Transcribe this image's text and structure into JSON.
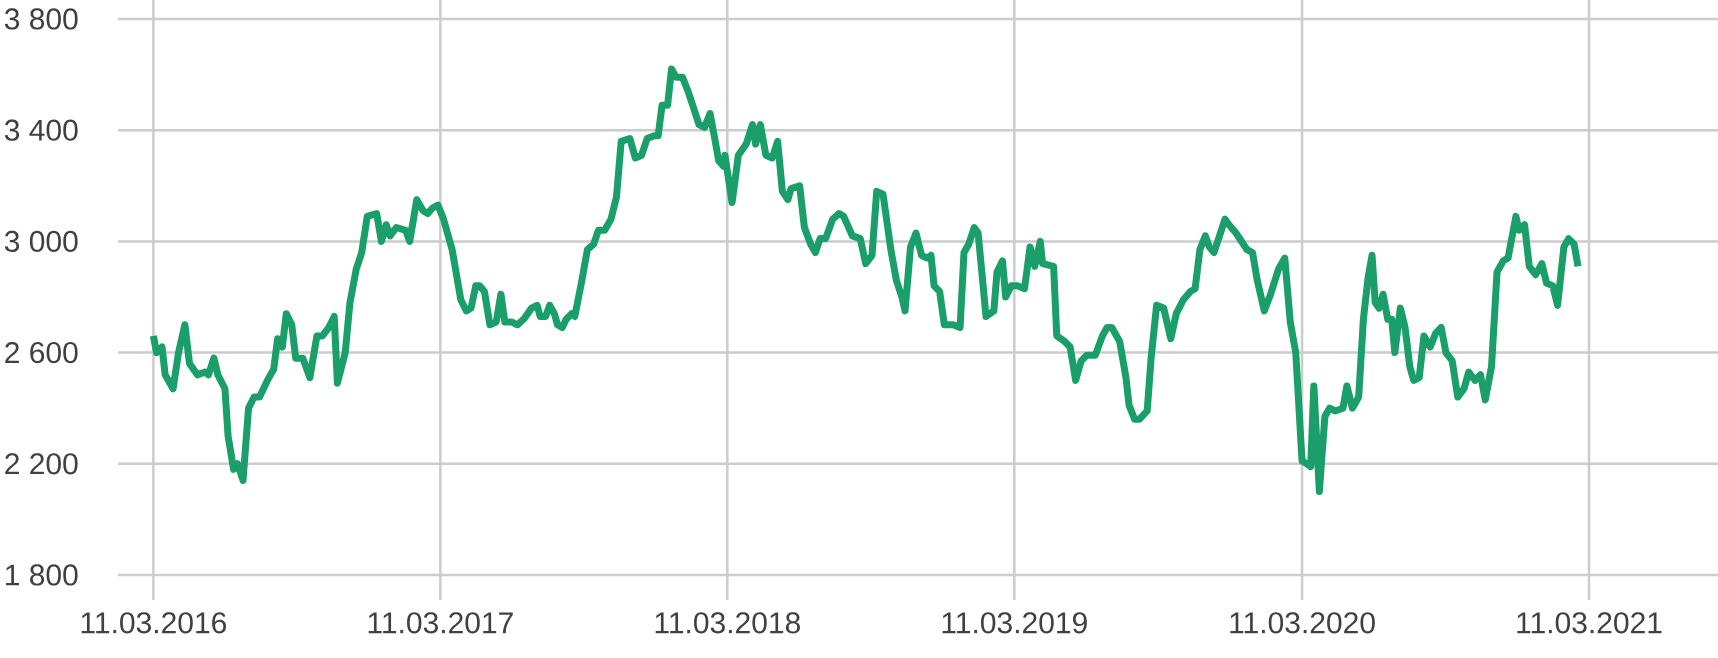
{
  "chart_data": {
    "type": "line",
    "color": "#1a9e6a",
    "grid": true,
    "xlim": [
      "2016-01-26",
      "2021-08-22"
    ],
    "xticks": [
      {
        "value": "2016-03-11",
        "label": "11.03.2016"
      },
      {
        "value": "2017-03-11",
        "label": "11.03.2017"
      },
      {
        "value": "2018-03-11",
        "label": "11.03.2018"
      },
      {
        "value": "2019-03-11",
        "label": "11.03.2019"
      },
      {
        "value": "2020-03-11",
        "label": "11.03.2020"
      },
      {
        "value": "2021-03-11",
        "label": "11.03.2021"
      }
    ],
    "ylim": [
      1800,
      3800
    ],
    "yticks": [
      {
        "value": 1800,
        "label": "1 800"
      },
      {
        "value": 2200,
        "label": "2 200"
      },
      {
        "value": 2600,
        "label": "2 600"
      },
      {
        "value": 3000,
        "label": "3 000"
      },
      {
        "value": 3400,
        "label": "3 400"
      },
      {
        "value": 3800,
        "label": "3 800"
      }
    ],
    "x": [
      "2016-03-11",
      "2016-03-15",
      "2016-03-22",
      "2016-03-26",
      "2016-04-05",
      "2016-04-12",
      "2016-04-20",
      "2016-04-26",
      "2016-05-06",
      "2016-05-16",
      "2016-05-20",
      "2016-05-27",
      "2016-06-01",
      "2016-06-10",
      "2016-06-14",
      "2016-06-21",
      "2016-06-26",
      "2016-07-03",
      "2016-07-10",
      "2016-07-17",
      "2016-07-24",
      "2016-08-03",
      "2016-08-11",
      "2016-08-16",
      "2016-08-22",
      "2016-08-27",
      "2016-09-03",
      "2016-09-08",
      "2016-09-17",
      "2016-09-26",
      "2016-10-05",
      "2016-10-12",
      "2016-10-20",
      "2016-10-27",
      "2016-10-31",
      "2016-11-10",
      "2016-11-16",
      "2016-11-24",
      "2016-12-01",
      "2016-12-08",
      "2016-12-20",
      "2016-12-26",
      "2017-01-01",
      "2017-01-06",
      "2017-01-14",
      "2017-01-26",
      "2017-01-31",
      "2017-02-09",
      "2017-02-17",
      "2017-02-23",
      "2017-03-01",
      "2017-03-08",
      "2017-03-15",
      "2017-03-26",
      "2017-04-06",
      "2017-04-13",
      "2017-04-19",
      "2017-04-25",
      "2017-04-30",
      "2017-05-06",
      "2017-05-13",
      "2017-05-21",
      "2017-05-27",
      "2017-06-01",
      "2017-06-10",
      "2017-06-17",
      "2017-06-25",
      "2017-07-05",
      "2017-07-12",
      "2017-07-16",
      "2017-07-23",
      "2017-07-28",
      "2017-08-03",
      "2017-08-07",
      "2017-08-13",
      "2017-08-18",
      "2017-08-25",
      "2017-08-29",
      "2017-09-07",
      "2017-09-14",
      "2017-09-22",
      "2017-09-28",
      "2017-10-06",
      "2017-10-14",
      "2017-10-21",
      "2017-10-27",
      "2017-11-07",
      "2017-11-14",
      "2017-11-22",
      "2017-11-29",
      "2017-12-08",
      "2017-12-13",
      "2017-12-18",
      "2017-12-25",
      "2017-12-30",
      "2018-01-05",
      "2018-01-13",
      "2018-01-20",
      "2018-01-27",
      "2018-02-03",
      "2018-02-10",
      "2018-02-17",
      "2018-02-23",
      "2018-02-28",
      "2018-03-06",
      "2018-03-08",
      "2018-03-17",
      "2018-03-25",
      "2018-04-04",
      "2018-04-12",
      "2018-04-16",
      "2018-04-22",
      "2018-04-29",
      "2018-05-07",
      "2018-05-14",
      "2018-05-20",
      "2018-05-27",
      "2018-05-31",
      "2018-06-11",
      "2018-06-17",
      "2018-06-25",
      "2018-07-01",
      "2018-07-07",
      "2018-07-14",
      "2018-07-23",
      "2018-07-31",
      "2018-08-06",
      "2018-08-17",
      "2018-08-27",
      "2018-09-03",
      "2018-09-11",
      "2018-09-17",
      "2018-09-25",
      "2018-10-05",
      "2018-10-12",
      "2018-10-19",
      "2018-10-23",
      "2018-10-30",
      "2018-11-06",
      "2018-11-13",
      "2018-11-20",
      "2018-11-25",
      "2018-11-29",
      "2018-12-06",
      "2018-12-12",
      "2018-12-23",
      "2019-01-01",
      "2019-01-06",
      "2019-01-12",
      "2019-01-19",
      "2019-01-24",
      "2019-02-03",
      "2019-02-13",
      "2019-02-17",
      "2019-02-24",
      "2019-02-28",
      "2019-03-07",
      "2019-03-15",
      "2019-03-24",
      "2019-03-31",
      "2019-04-06",
      "2019-04-13",
      "2019-04-16",
      "2019-04-30",
      "2019-05-04",
      "2019-05-14",
      "2019-05-21",
      "2019-05-28",
      "2019-06-04",
      "2019-06-11",
      "2019-06-22",
      "2019-07-01",
      "2019-07-07",
      "2019-07-13",
      "2019-07-23",
      "2019-07-31",
      "2019-08-04",
      "2019-08-11",
      "2019-08-17",
      "2019-08-27",
      "2019-09-01",
      "2019-09-08",
      "2019-09-17",
      "2019-09-26",
      "2019-10-03",
      "2019-10-12",
      "2019-10-21",
      "2019-10-27",
      "2019-11-02",
      "2019-11-09",
      "2019-11-14",
      "2019-11-20",
      "2019-11-27",
      "2019-12-04",
      "2019-12-09",
      "2019-12-18",
      "2019-12-25",
      "2020-01-01",
      "2020-01-08",
      "2020-01-14",
      "2020-01-23",
      "2020-01-31",
      "2020-02-10",
      "2020-02-18",
      "2020-02-25",
      "2020-03-03",
      "2020-03-11",
      "2020-03-17",
      "2020-03-22",
      "2020-03-26",
      "2020-04-02",
      "2020-04-09",
      "2020-04-15",
      "2020-04-22",
      "2020-05-02",
      "2020-05-07",
      "2020-05-14",
      "2020-05-22",
      "2020-05-28",
      "2020-06-03",
      "2020-06-08",
      "2020-06-12",
      "2020-06-17",
      "2020-06-22",
      "2020-06-28",
      "2020-07-03",
      "2020-07-07",
      "2020-07-14",
      "2020-07-20",
      "2020-07-26",
      "2020-07-31",
      "2020-08-07",
      "2020-08-13",
      "2020-08-21",
      "2020-08-28",
      "2020-09-04",
      "2020-09-10",
      "2020-09-18",
      "2020-09-25",
      "2020-10-03",
      "2020-10-09",
      "2020-10-17",
      "2020-10-24",
      "2020-10-30",
      "2020-11-07",
      "2020-11-14",
      "2020-11-22",
      "2020-11-28",
      "2020-12-08",
      "2020-12-12",
      "2020-12-19",
      "2020-12-25",
      "2021-01-02",
      "2021-01-10",
      "2021-01-16",
      "2021-01-24",
      "2021-01-30",
      "2021-02-07",
      "2021-02-13",
      "2021-02-20",
      "2021-02-25"
    ],
    "values": [
      2660,
      2600,
      2620,
      2520,
      2470,
      2600,
      2700,
      2560,
      2520,
      2530,
      2520,
      2580,
      2520,
      2470,
      2300,
      2180,
      2200,
      2140,
      2400,
      2440,
      2440,
      2500,
      2540,
      2650,
      2620,
      2740,
      2700,
      2580,
      2580,
      2510,
      2660,
      2660,
      2690,
      2730,
      2490,
      2600,
      2780,
      2900,
      2960,
      3090,
      3100,
      3000,
      3060,
      3020,
      3050,
      3040,
      3000,
      3150,
      3110,
      3100,
      3120,
      3130,
      3080,
      2970,
      2790,
      2750,
      2760,
      2840,
      2840,
      2820,
      2700,
      2710,
      2810,
      2710,
      2710,
      2700,
      2720,
      2760,
      2770,
      2730,
      2730,
      2770,
      2740,
      2700,
      2690,
      2720,
      2740,
      2730,
      2860,
      2970,
      2990,
      3040,
      3040,
      3080,
      3160,
      3360,
      3370,
      3300,
      3310,
      3370,
      3380,
      3380,
      3490,
      3490,
      3620,
      3590,
      3590,
      3540,
      3480,
      3420,
      3410,
      3460,
      3370,
      3290,
      3270,
      3310,
      3140,
      3310,
      3350,
      3420,
      3350,
      3420,
      3310,
      3300,
      3360,
      3180,
      3150,
      3190,
      3200,
      3050,
      2990,
      2960,
      3010,
      3010,
      3080,
      3100,
      3090,
      3020,
      3010,
      2920,
      2950,
      3180,
      3170,
      2970,
      2860,
      2800,
      2750,
      2980,
      3030,
      2950,
      2940,
      2950,
      2840,
      2820,
      2700,
      2700,
      2690,
      2960,
      2990,
      3050,
      3030,
      2730,
      2750,
      2890,
      2930,
      2800,
      2840,
      2840,
      2830,
      2980,
      2910,
      3000,
      2920,
      2910,
      2660,
      2640,
      2620,
      2500,
      2570,
      2590,
      2590,
      2660,
      2690,
      2690,
      2640,
      2510,
      2410,
      2360,
      2360,
      2390,
      2580,
      2770,
      2760,
      2650,
      2740,
      2790,
      2820,
      2830,
      2970,
      3020,
      2980,
      2960,
      3020,
      3080,
      3060,
      3030,
      3000,
      2970,
      2960,
      2860,
      2750,
      2810,
      2900,
      2940,
      2710,
      2600,
      2210,
      2200,
      2190,
      2480,
      2100,
      2370,
      2400,
      2390,
      2400,
      2480,
      2400,
      2440,
      2720,
      2870,
      2950,
      2780,
      2760,
      2810,
      2720,
      2720,
      2600,
      2760,
      2690,
      2550,
      2500,
      2510,
      2660,
      2620,
      2670,
      2690,
      2600,
      2570,
      2440,
      2470,
      2530,
      2500,
      2520,
      2430,
      2550,
      2890,
      2930,
      2940,
      3090,
      3040,
      3060,
      2910,
      2880,
      2920,
      2850,
      2840,
      2770,
      2980,
      3010,
      2990,
      2910
    ]
  }
}
